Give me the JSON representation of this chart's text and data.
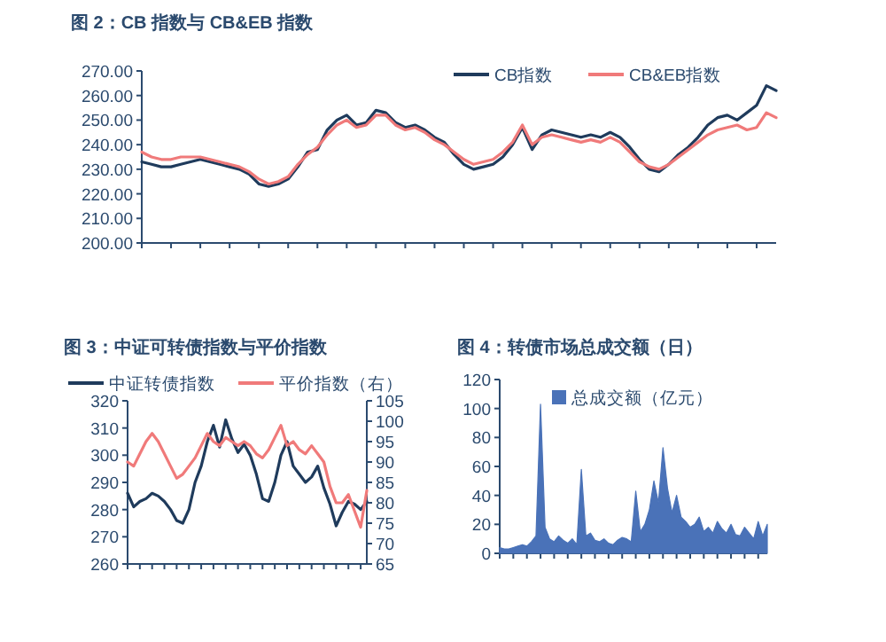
{
  "chart_data": [
    {
      "type": "line",
      "title": "图 2：CB 指数与 CB&EB 指数",
      "legend": "top right",
      "grid": false,
      "categories": [
        null,
        null,
        null,
        null,
        null,
        null,
        null,
        null,
        null,
        null,
        null,
        null,
        null,
        null,
        null,
        null,
        null,
        null,
        null,
        null,
        null,
        null,
        null,
        null,
        null,
        null,
        null,
        null,
        null,
        null,
        null,
        null,
        null,
        null,
        null,
        null,
        null,
        null,
        null,
        null,
        null,
        null,
        null,
        null,
        null,
        null,
        null,
        null,
        null,
        null,
        null,
        null,
        null,
        null,
        null,
        null,
        null,
        null,
        null,
        null,
        null,
        null,
        null,
        null,
        null,
        null
      ],
      "ylim": [
        200,
        270
      ],
      "yticks": [
        {
          "value": 200,
          "label": "200.00"
        },
        {
          "value": 210,
          "label": "210.00"
        },
        {
          "value": 220,
          "label": "220.00"
        },
        {
          "value": 230,
          "label": "230.00"
        },
        {
          "value": 240,
          "label": "240.00"
        },
        {
          "value": 250,
          "label": "250.00"
        },
        {
          "value": 260,
          "label": "260.00"
        },
        {
          "value": 270,
          "label": "270.00"
        }
      ],
      "series": [
        {
          "name": "CB指数",
          "color": "#1f3b5c",
          "values": [
            233,
            232,
            231,
            231,
            232,
            233,
            234,
            233,
            232,
            231,
            230,
            228,
            224,
            223,
            224,
            226,
            231,
            237,
            238,
            246,
            250,
            252,
            248,
            249,
            254,
            253,
            249,
            247,
            248,
            246,
            243,
            241,
            236,
            232,
            230,
            231,
            232,
            235,
            240,
            247,
            238,
            244,
            246,
            245,
            244,
            243,
            244,
            243,
            245,
            243,
            239,
            234,
            230,
            229,
            232,
            236,
            239,
            243,
            248,
            251,
            252,
            250,
            253,
            256,
            264,
            262
          ]
        },
        {
          "name": "CB&EB指数",
          "color": "#f07a7a",
          "values": [
            237,
            235,
            234,
            234,
            235,
            235,
            235,
            234,
            233,
            232,
            231,
            229,
            226,
            224,
            225,
            227,
            232,
            236,
            239,
            244,
            248,
            250,
            247,
            248,
            252,
            252,
            248,
            246,
            247,
            245,
            242,
            240,
            237,
            234,
            232,
            233,
            234,
            237,
            241,
            248,
            240,
            243,
            244,
            243,
            242,
            241,
            242,
            241,
            243,
            241,
            237,
            233,
            231,
            230,
            232,
            235,
            238,
            241,
            244,
            246,
            247,
            248,
            246,
            247,
            253,
            251
          ]
        }
      ]
    },
    {
      "type": "line",
      "title": "图 3：中证可转债指数与平价指数",
      "legend": "top",
      "grid": false,
      "categories": [
        null,
        null,
        null,
        null,
        null,
        null,
        null,
        null,
        null,
        null,
        null,
        null,
        null,
        null,
        null,
        null,
        null,
        null,
        null,
        null,
        null,
        null,
        null,
        null,
        null,
        null,
        null,
        null,
        null,
        null,
        null,
        null,
        null,
        null,
        null,
        null,
        null,
        null,
        null,
        null
      ],
      "ylim": [
        260,
        320
      ],
      "yticks": [
        260,
        270,
        280,
        290,
        300,
        310,
        320
      ],
      "y2lim": [
        65,
        105
      ],
      "y2ticks": [
        65,
        70,
        75,
        80,
        85,
        90,
        95,
        100,
        105
      ],
      "series": [
        {
          "name": "中证转债指数",
          "color": "#1f3b5c",
          "values": [
            286,
            281,
            283,
            284,
            286,
            285,
            283,
            280,
            276,
            275,
            280,
            290,
            296,
            305,
            311,
            303,
            313,
            306,
            301,
            304,
            300,
            293,
            284,
            283,
            290,
            300,
            305,
            296,
            293,
            290,
            292,
            296,
            288,
            282,
            274,
            279,
            283,
            282,
            280,
            283
          ]
        },
        {
          "name": "平价指数（右）",
          "color": "#f07a7a",
          "axis": "y2",
          "values": [
            90,
            89,
            92,
            95,
            97,
            95,
            92,
            89,
            86,
            87,
            89,
            91,
            94,
            97,
            95,
            94,
            96,
            95,
            94,
            95,
            94,
            92,
            91,
            93,
            96,
            99,
            94,
            95,
            93,
            92,
            94,
            92,
            90,
            84,
            80,
            80,
            82,
            78,
            74,
            83
          ]
        }
      ]
    },
    {
      "type": "area",
      "title": "图 4：转债市场总成交额（日）",
      "legend": "top",
      "grid": false,
      "categories": [
        null,
        null,
        null,
        null,
        null,
        null,
        null,
        null,
        null,
        null,
        null,
        null,
        null,
        null,
        null,
        null,
        null,
        null,
        null,
        null,
        null,
        null,
        null,
        null,
        null,
        null,
        null,
        null,
        null,
        null,
        null,
        null,
        null,
        null,
        null,
        null,
        null,
        null,
        null,
        null,
        null,
        null,
        null,
        null,
        null,
        null,
        null,
        null,
        null,
        null,
        null,
        null,
        null,
        null,
        null,
        null,
        null,
        null,
        null,
        null
      ],
      "ylim": [
        0,
        120
      ],
      "yticks": [
        0,
        20,
        40,
        60,
        80,
        100,
        120
      ],
      "series": [
        {
          "name": "总成交额（亿元）",
          "color": "#4a72b8",
          "values": [
            4,
            3,
            3,
            4,
            5,
            6,
            5,
            8,
            12,
            103,
            18,
            10,
            8,
            12,
            9,
            7,
            10,
            6,
            58,
            12,
            14,
            9,
            8,
            10,
            7,
            6,
            9,
            11,
            10,
            8,
            43,
            15,
            20,
            30,
            50,
            35,
            73,
            45,
            28,
            40,
            25,
            22,
            18,
            20,
            25,
            15,
            18,
            14,
            22,
            17,
            14,
            20,
            13,
            12,
            18,
            14,
            10,
            22,
            12,
            20
          ]
        }
      ]
    }
  ]
}
